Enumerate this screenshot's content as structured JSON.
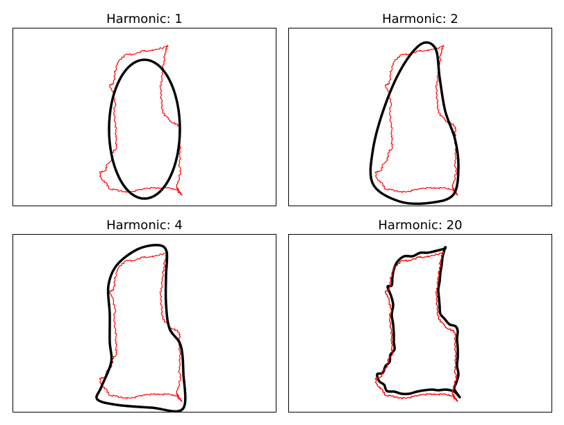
{
  "chart_data": {
    "type": "line",
    "grid": false,
    "panels": [
      {
        "title": "Harmonic: 1",
        "series": [
          {
            "values": "contour"
          },
          {
            "values": "approximation"
          }
        ]
      },
      {
        "title": "Harmonic: 2",
        "series": [
          {
            "values": "contour"
          },
          {
            "values": "approximation"
          }
        ]
      },
      {
        "title": "Harmonic: 4",
        "series": [
          {
            "values": "contour"
          },
          {
            "values": "approximation"
          }
        ]
      },
      {
        "title": "Harmonic: 20",
        "series": [
          {
            "values": "contour"
          },
          {
            "values": "approximation"
          }
        ]
      }
    ]
  },
  "style": {
    "contour_color": "#ff0000",
    "approximation_color": "#000000",
    "axes_color": "#000000",
    "background": "#ffffff"
  }
}
